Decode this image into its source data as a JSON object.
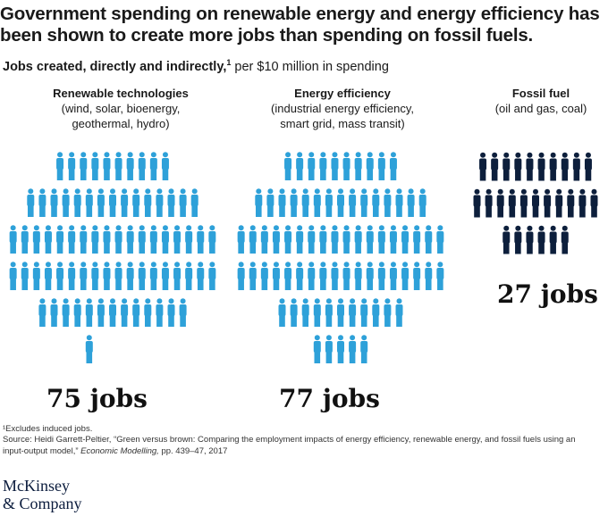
{
  "title": "Government spending on renewable energy and energy efficiency has been shown to create more jobs than spending on fossil fuels.",
  "subtitle": {
    "bold": "Jobs created, directly and indirectly,",
    "sup": "1",
    "rest": " per $10 million in spending"
  },
  "colors": {
    "renewable": "#2ea1d9",
    "efficiency": "#2ea1d9",
    "fossil": "#0d1f3c"
  },
  "chart_data": {
    "type": "pictograph",
    "unit": "jobs per $10 million in spending",
    "categories": [
      {
        "name": "Renewable technologies",
        "detail": "(wind, solar, bioenergy, geothermal, hydro)",
        "value": 75,
        "label": "75 jobs"
      },
      {
        "name": "Energy efficiency",
        "detail": "(industrial energy efficiency, smart grid, mass transit)",
        "value": 77,
        "label": "77 jobs"
      },
      {
        "name": "Fossil fuel",
        "detail": "(oil and gas, coal)",
        "value": 27,
        "label": "27 jobs"
      }
    ]
  },
  "footnote": "¹Excludes induced jobs.",
  "source": {
    "text": "Source: Heidi Garrett-Peltier, “Green versus brown: Comparing the employment impacts of energy efficiency, renewable energy, and fossil fuels using an input-output model,”",
    "journal": "Economic Modelling,",
    "pages": "pp. 439–47, 2017"
  },
  "logo": {
    "line1": "McKinsey",
    "line2": "& Company"
  }
}
